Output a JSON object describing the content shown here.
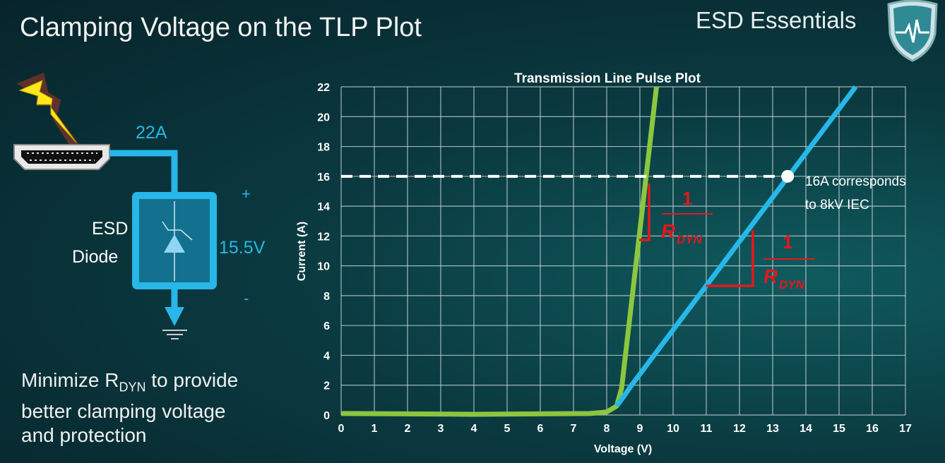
{
  "slide": {
    "title": "Clamping Voltage on the TLP Plot",
    "brand": "ESD Essentials",
    "bottom_text_pre": "Minimize R",
    "bottom_text_sub": "DYN",
    "bottom_text_post_1": " to provide",
    "bottom_text_line2": "better clamping voltage",
    "bottom_text_line3": "and protection"
  },
  "circuit": {
    "current_label": "22A",
    "device_label_1": "ESD",
    "device_label_2": "Diode",
    "voltage_label": "15.5V",
    "plus": "+",
    "minus": "-",
    "accent": "#27b7e8"
  },
  "chart_data": {
    "type": "line",
    "title": "Transmission Line Pulse Plot",
    "xlabel": "Voltage (V)",
    "ylabel": "Current (A)",
    "xlim": [
      0,
      17
    ],
    "ylim": [
      0,
      22
    ],
    "xticks": [
      0,
      1,
      2,
      3,
      4,
      5,
      6,
      7,
      8,
      9,
      10,
      11,
      12,
      13,
      14,
      15,
      16,
      17
    ],
    "yticks": [
      0,
      2,
      4,
      6,
      8,
      10,
      12,
      14,
      16,
      18,
      20,
      22
    ],
    "grid": true,
    "series": [
      {
        "color": "#8cc63f",
        "x": [
          0,
          4,
          7.5,
          8.0,
          8.3,
          8.45,
          9.5
        ],
        "y": [
          0.1,
          0.05,
          0.1,
          0.2,
          0.6,
          1.8,
          22
        ]
      },
      {
        "color": "#27b7e8",
        "x": [
          8.3,
          8.5,
          8.75,
          15.5
        ],
        "y": [
          0.6,
          1.2,
          2.0,
          22
        ]
      }
    ],
    "reference_line": {
      "y": 16,
      "style": "dashed",
      "color": "#ffffff"
    },
    "marker": {
      "x": 13.45,
      "y": 16,
      "color": "#ffffff"
    },
    "annotation_line1": "16A corresponds",
    "annotation_line2": "to 8kV IEC",
    "slope_label_num": "1",
    "slope_label_den": "R",
    "slope_label_sub": "DYN",
    "slope_color": "#e8161b"
  }
}
